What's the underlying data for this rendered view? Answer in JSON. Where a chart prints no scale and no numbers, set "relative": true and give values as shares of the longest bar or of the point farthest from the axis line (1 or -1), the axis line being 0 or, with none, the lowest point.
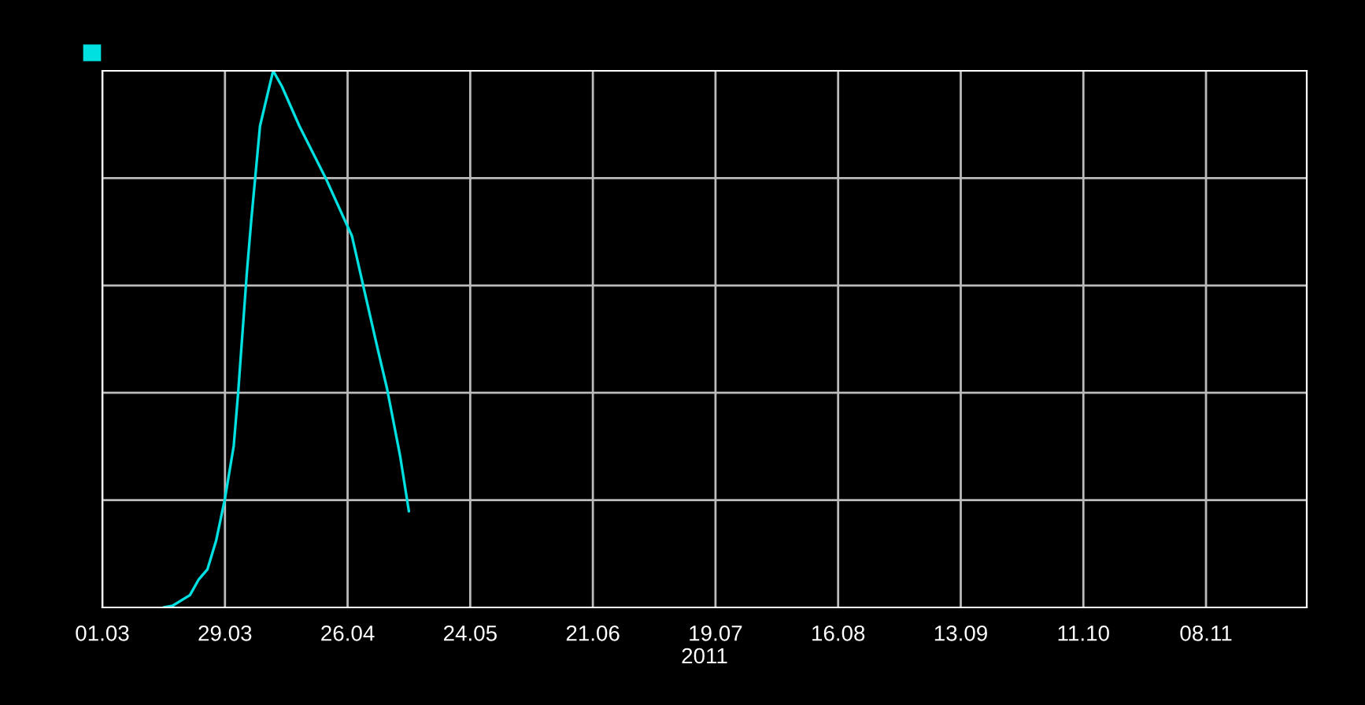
{
  "chart_data": {
    "type": "line",
    "relative": true,
    "xlabel": "2011",
    "x": [
      "2011-03-15",
      "2011-03-17",
      "2011-03-21",
      "2011-03-23",
      "2011-03-25",
      "2011-03-27",
      "2011-03-29",
      "2011-03-31",
      "2011-04-01",
      "2011-04-03",
      "2011-04-04",
      "2011-04-05",
      "2011-04-06",
      "2011-04-08",
      "2011-04-09",
      "2011-04-11",
      "2011-04-15",
      "2011-04-21",
      "2011-04-27",
      "2011-04-30",
      "2011-05-03",
      "2011-05-05",
      "2011-05-08",
      "2011-05-10"
    ],
    "series": [
      {
        "color": "#00e0e0",
        "values": [
          0,
          0.003,
          0.023,
          0.052,
          0.071,
          0.125,
          0.203,
          0.301,
          0.399,
          0.624,
          0.721,
          0.809,
          0.897,
          0.966,
          1,
          0.971,
          0.897,
          0.8,
          0.692,
          0.584,
          0.477,
          0.408,
          0.282,
          0.179
        ]
      }
    ],
    "xlim": [
      "2011-03-01",
      "2011-12-01"
    ],
    "xticks": [
      {
        "value": "2011-03-01",
        "label": "01.03"
      },
      {
        "value": "2011-03-29",
        "label": "29.03"
      },
      {
        "value": "2011-04-26",
        "label": "26.04"
      },
      {
        "value": "2011-05-24",
        "label": "24.05"
      },
      {
        "value": "2011-06-21",
        "label": "21.06"
      },
      {
        "value": "2011-07-19",
        "label": "19.07"
      },
      {
        "value": "2011-08-16",
        "label": "16.08"
      },
      {
        "value": "2011-09-13",
        "label": "13.09"
      },
      {
        "value": "2011-10-11",
        "label": "11.10"
      },
      {
        "value": "2011-11-08",
        "label": "08.11"
      }
    ],
    "grid": true,
    "marker": "none",
    "line_style": "solid"
  }
}
